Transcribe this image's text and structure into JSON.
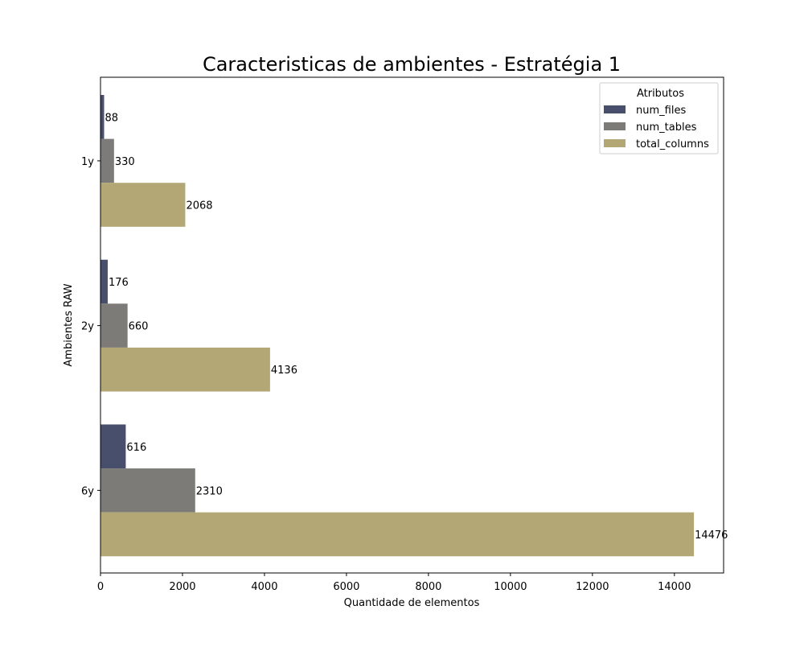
{
  "chart_data": {
    "type": "bar",
    "orientation": "horizontal",
    "title": "Caracteristicas de ambientes - Estratégia 1",
    "xlabel": "Quantidade de elementos",
    "ylabel": "Ambientes RAW",
    "categories": [
      "1y",
      "2y",
      "6y"
    ],
    "xlim": [
      0,
      15200
    ],
    "xticks": [
      0,
      2000,
      4000,
      6000,
      8000,
      10000,
      12000,
      14000
    ],
    "grid": false,
    "legend": {
      "title": "Atributos",
      "placement": "top-right"
    },
    "series": [
      {
        "name": "num_files",
        "color": "#474f6d",
        "values": [
          88,
          176,
          616
        ]
      },
      {
        "name": "num_tables",
        "color": "#7d7b77",
        "values": [
          330,
          660,
          2310
        ]
      },
      {
        "name": "total_columns",
        "color": "#b2a775",
        "values": [
          2068,
          4136,
          14476
        ]
      }
    ]
  }
}
